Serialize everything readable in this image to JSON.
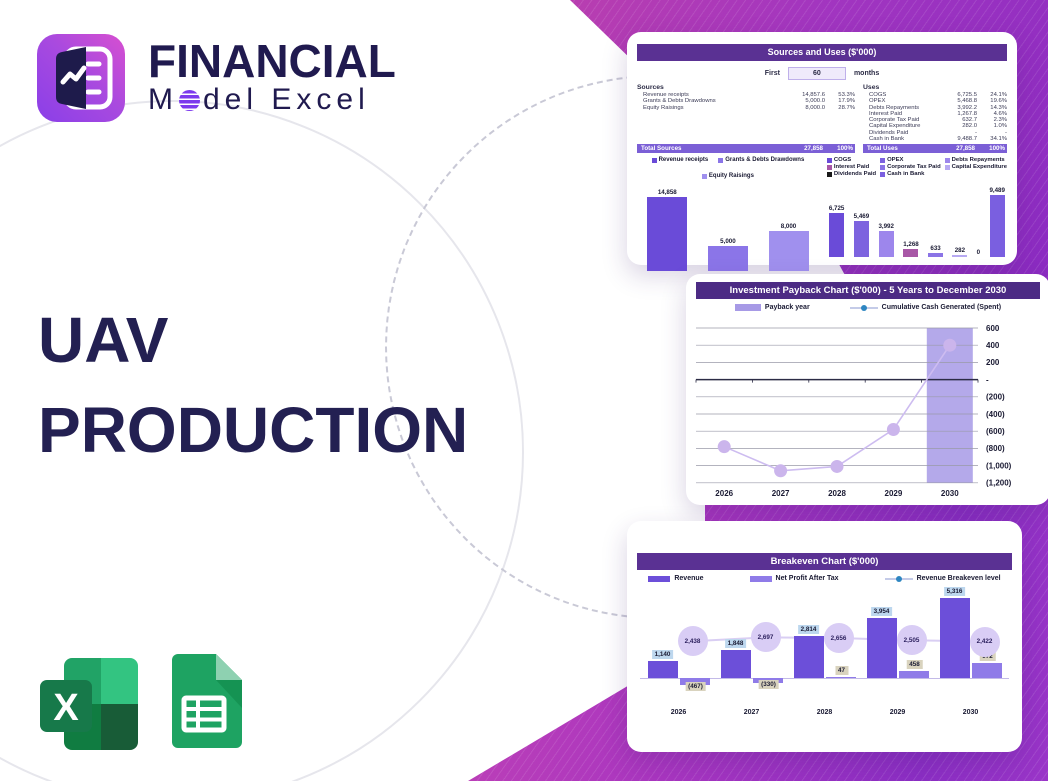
{
  "brand": {
    "name_line1": "FINANCIAL",
    "name_line2_prefix": "M",
    "name_line2_suffix": "del Excel",
    "accent_purple": "#7C3AED"
  },
  "hero": {
    "title_line1": "UAV",
    "title_line2": "PRODUCTION"
  },
  "icons": {
    "logo": "financial-model-excel-logo",
    "excel": "excel-icon",
    "sheets": "google-sheets-icon"
  },
  "colors": {
    "card_header": "#5A3193",
    "payback_header": "#4C2B84",
    "total_row": "#7B5FD6",
    "gradient_magenta": "#BB3FAE",
    "gradient_purple": "#8A2BC2",
    "title_navy": "#232052"
  },
  "sources_uses": {
    "header": "Sources and Uses ($'000)",
    "period_label": "First",
    "period_value": "60",
    "period_unit": "months",
    "sources_title": "Sources",
    "uses_title": "Uses",
    "sources_rows": [
      {
        "label": "Revenue receipts",
        "value": "14,857.6",
        "pct": "53.3%"
      },
      {
        "label": "Grants & Debts Drawdowns",
        "value": "5,000.0",
        "pct": "17.9%"
      },
      {
        "label": "Equity Raisings",
        "value": "8,000.0",
        "pct": "28.7%"
      }
    ],
    "sources_total": {
      "label": "Total Sources",
      "value": "27,858",
      "pct": "100%"
    },
    "uses_rows": [
      {
        "label": "COGS",
        "value": "6,725.5",
        "pct": "24.1%"
      },
      {
        "label": "OPEX",
        "value": "5,468.8",
        "pct": "19.6%"
      },
      {
        "label": "Debts Repayments",
        "value": "3,992.2",
        "pct": "14.3%"
      },
      {
        "label": "Interest Paid",
        "value": "1,267.8",
        "pct": "4.6%"
      },
      {
        "label": "Corporate Tax Paid",
        "value": "632.7",
        "pct": "2.3%"
      },
      {
        "label": "Capital Expenditure",
        "value": "282.0",
        "pct": "1.0%"
      },
      {
        "label": "Dividends Paid",
        "value": "-",
        "pct": "-"
      },
      {
        "label": "Cash in Bank",
        "value": "9,488.7",
        "pct": "34.1%"
      }
    ],
    "uses_total": {
      "label": "Total Uses",
      "value": "27,858",
      "pct": "100%"
    }
  },
  "payback": {
    "header": "Investment Payback Chart ($'000) - 5 Years to December 2030",
    "legend_bar": "Payback year",
    "legend_line": "Cumulative Cash Generated (Spent)"
  },
  "breakeven": {
    "header": "Breakeven Chart ($'000)",
    "legend": [
      "Revenue",
      "Net Profit After Tax",
      "Revenue Breakeven level"
    ]
  },
  "chart_data": [
    {
      "id": "sources_bar",
      "type": "bar",
      "title": "Sources ($'000)",
      "categories": [
        "Revenue receipts",
        "Grants & Debts Drawdowns",
        "Equity Raisings"
      ],
      "values": [
        14858,
        5000,
        8000
      ],
      "labels": [
        "14,858",
        "5,000",
        "8,000"
      ],
      "colors": [
        "#6A4BD8",
        "#8B75E8",
        "#A090EE"
      ],
      "ylim": [
        0,
        14858
      ],
      "grid": false,
      "legend_position": "top"
    },
    {
      "id": "uses_bar",
      "type": "bar",
      "title": "Uses ($'000)",
      "categories": [
        "COGS",
        "OPEX",
        "Debts Repayments",
        "Interest Paid",
        "Corporate Tax Paid",
        "Capital Expenditure",
        "Dividends Paid",
        "Cash in Bank"
      ],
      "values": [
        6725,
        5469,
        3992,
        1268,
        633,
        282,
        0,
        9489
      ],
      "labels": [
        "6,725",
        "5,469",
        "3,992",
        "1,268",
        "633",
        "282",
        "0",
        "9,489"
      ],
      "colors": [
        "#6A4BD8",
        "#7D63DF",
        "#9D86EC",
        "#A857A6",
        "#8B74E6",
        "#B7A9F2",
        "#1A1A1A",
        "#7A5FE0"
      ],
      "ylim": [
        0,
        9489
      ],
      "grid": false,
      "legend_position": "top"
    },
    {
      "id": "payback",
      "type": "bar+line",
      "title": "Investment Payback Chart ($'000) - 5 Years to December 2030",
      "x": [
        "2026",
        "2027",
        "2028",
        "2029",
        "2030"
      ],
      "bar_series": "Payback year",
      "payback_year": "2030",
      "line_series": "Cumulative Cash Generated (Spent)",
      "line_values": [
        -780,
        -1060,
        -1010,
        -580,
        400
      ],
      "ylim": [
        -1200,
        600
      ],
      "ytick_labels": [
        "600",
        "400",
        "200",
        "-",
        "(200)",
        "(400)",
        "(600)",
        "(800)",
        "(1,000)",
        "(1,200)"
      ],
      "grid": true,
      "legend_position": "top",
      "bar_color": "#A79AE6",
      "line_color": "#CDBCF0",
      "marker_color": "#CBB5EC"
    },
    {
      "id": "breakeven",
      "type": "bar+line",
      "title": "Breakeven Chart ($'000)",
      "x": [
        "2026",
        "2027",
        "2028",
        "2029",
        "2030"
      ],
      "series": [
        {
          "name": "Revenue",
          "values": [
            1140,
            1848,
            2814,
            3954,
            5316
          ],
          "labels": [
            "1,140",
            "1,848",
            "2,814",
            "3,954",
            "5,316"
          ],
          "color": "#6C4FD9",
          "label_bg": "#BDD7EE"
        },
        {
          "name": "Net Profit After Tax",
          "values": [
            -467,
            -330,
            47,
            458,
            972
          ],
          "labels": [
            "(467)",
            "(330)",
            "47",
            "458",
            "972"
          ],
          "color": "#8F7BE8",
          "label_bg": "#D9D3BE"
        }
      ],
      "line": {
        "name": "Revenue Breakeven level",
        "values": [
          2438,
          2697,
          2656,
          2505,
          2422
        ],
        "labels": [
          "2,438",
          "2,697",
          "2,656",
          "2,505",
          "2,422"
        ],
        "circle_color": "#D9CDF5",
        "line_color": "#D9CEF3"
      },
      "ylim": [
        -600,
        5500
      ],
      "grid": false,
      "legend_position": "top"
    }
  ]
}
